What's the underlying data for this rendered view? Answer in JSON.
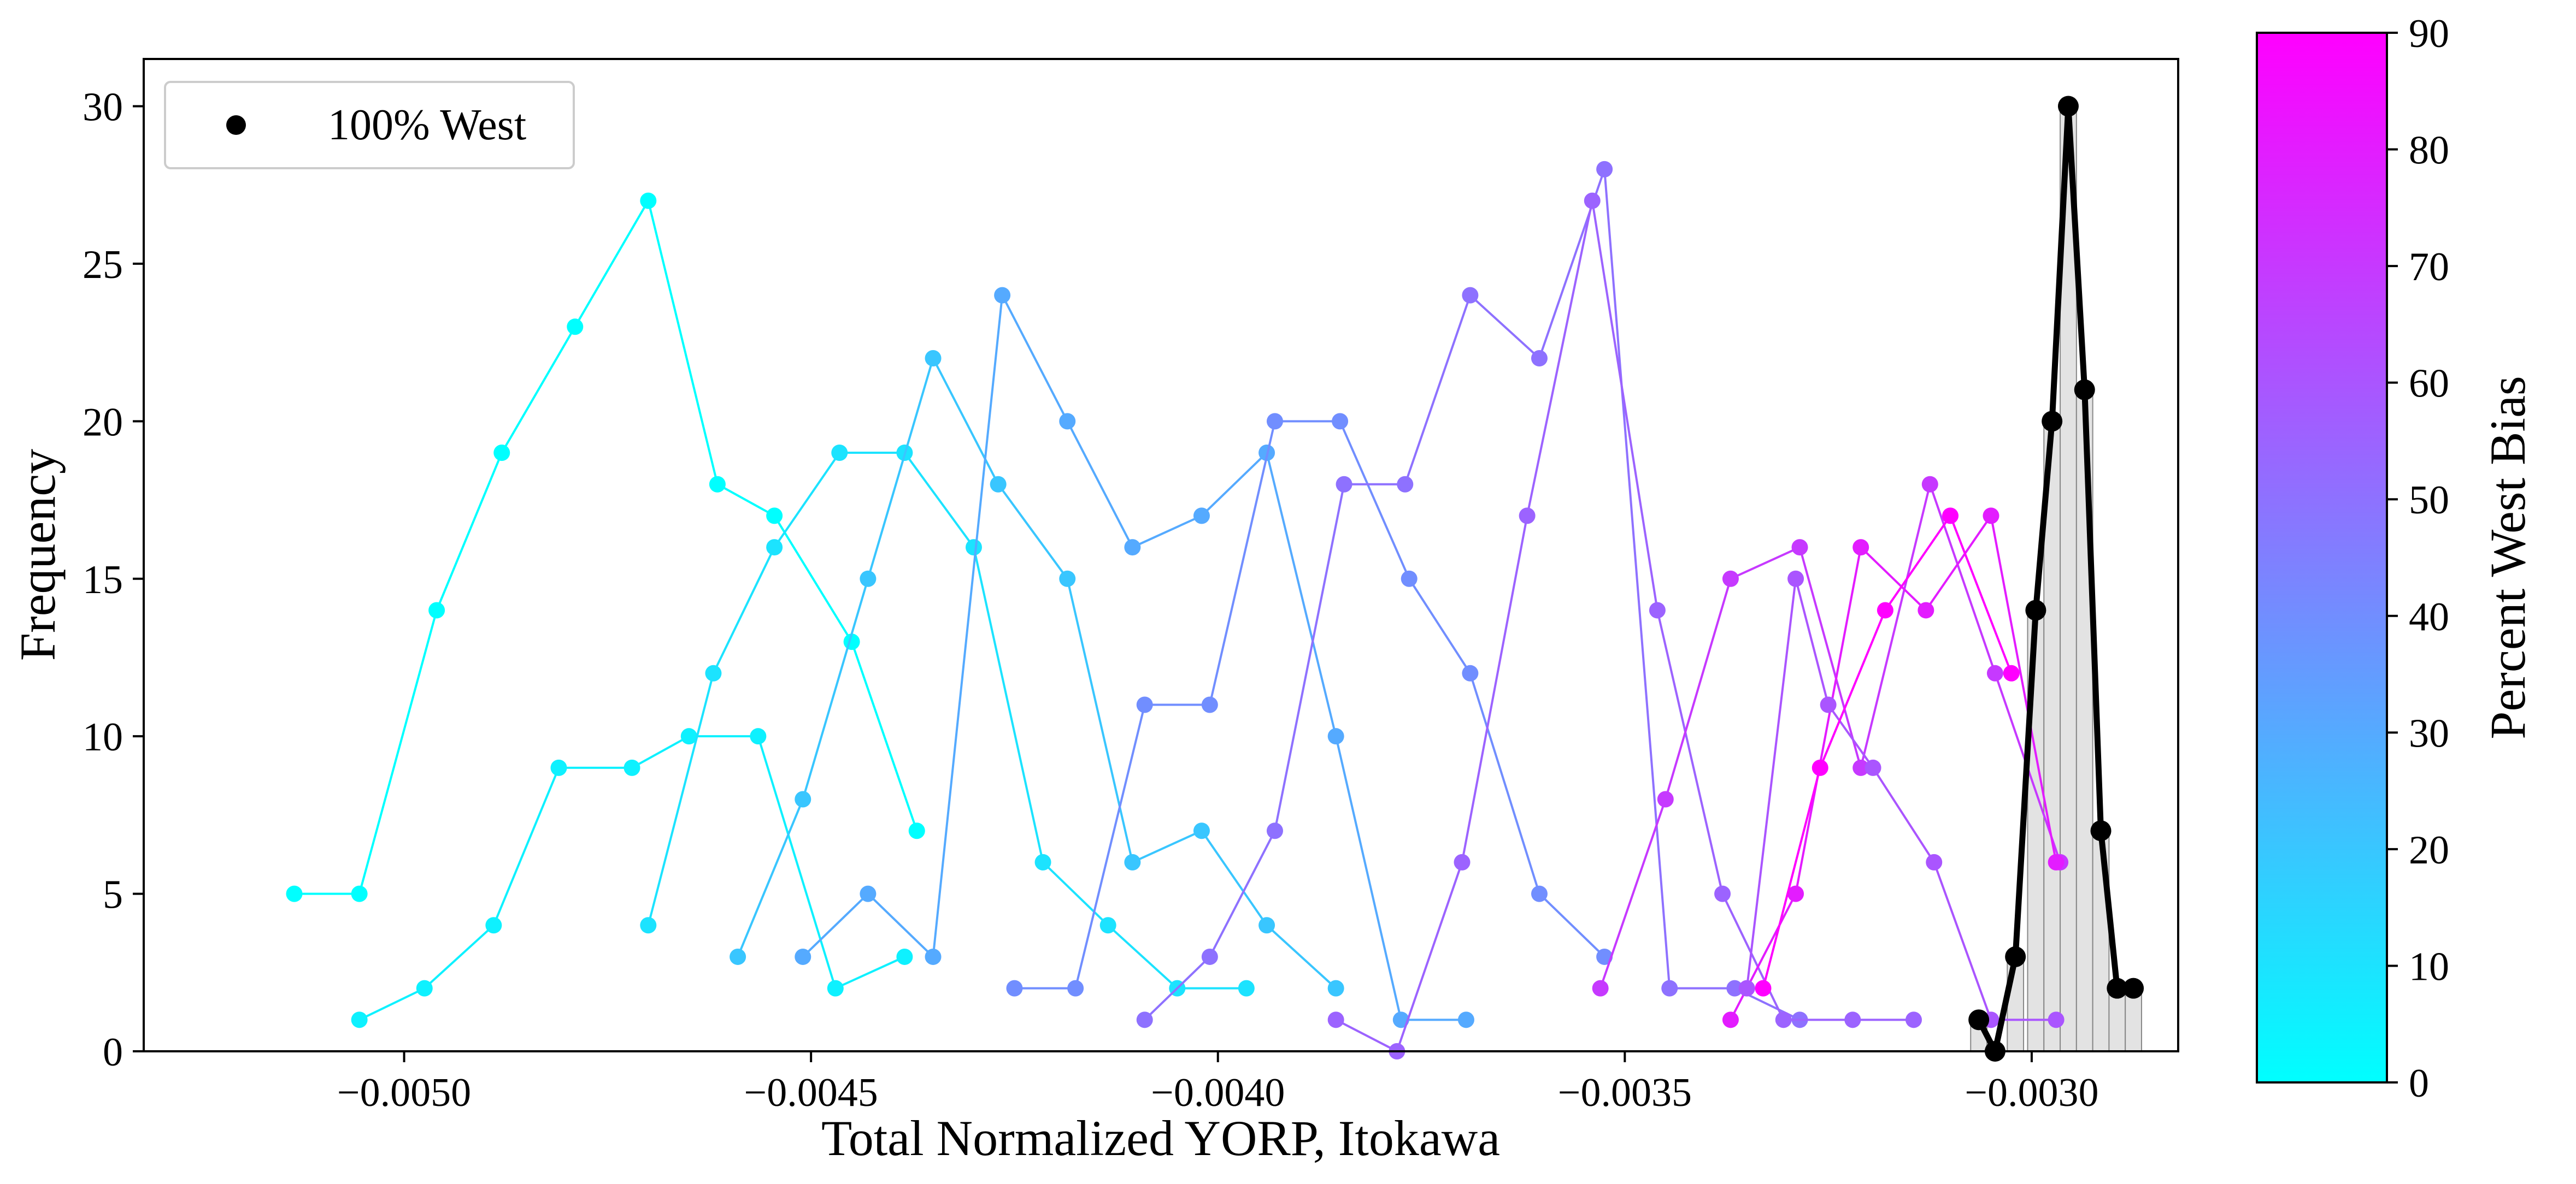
{
  "chart_data": {
    "type": "line",
    "xlabel": "Total Normalized YORP, Itokawa",
    "ylabel": "Frequency",
    "xlim": [
      -0.00532,
      -0.00282
    ],
    "ylim": [
      0,
      31.5
    ],
    "xticks": [
      -0.005,
      -0.0045,
      -0.004,
      -0.0035,
      -0.003
    ],
    "xtick_labels": [
      "−0.0050",
      "−0.0045",
      "−0.0040",
      "−0.0035",
      "−0.0030"
    ],
    "yticks": [
      0,
      5,
      10,
      15,
      20,
      25,
      30
    ],
    "ytick_labels": [
      "0",
      "5",
      "10",
      "15",
      "20",
      "25",
      "30"
    ],
    "grid": false,
    "legend": {
      "placement": "top-left",
      "entries": [
        "100% West"
      ]
    },
    "colorbar": {
      "label": "Percent West Bias",
      "range": [
        0,
        90
      ],
      "ticks": [
        "0",
        "10",
        "20",
        "30",
        "40",
        "50",
        "60",
        "70",
        "80",
        "90"
      ],
      "color_low": "#00ffff",
      "color_high": "#ff00ff"
    },
    "series": [
      {
        "bias": 0,
        "x": [
          -0.005135,
          -0.005055,
          -0.00496,
          -0.00488,
          -0.00479,
          -0.0047,
          -0.004615,
          -0.004545,
          -0.00445,
          -0.00437
        ],
        "y": [
          5,
          5,
          14,
          19,
          23,
          27,
          18,
          17,
          13,
          7
        ]
      },
      {
        "bias": 5,
        "x": [
          -0.005055,
          -0.004975,
          -0.00489,
          -0.00481,
          -0.00472,
          -0.00465,
          -0.004565,
          -0.00447,
          -0.004385
        ],
        "y": [
          1,
          2,
          4,
          9,
          9,
          10,
          10,
          2,
          3
        ]
      },
      {
        "bias": 10,
        "x": [
          -0.0047,
          -0.00462,
          -0.004545,
          -0.004465,
          -0.004385,
          -0.0043,
          -0.004215,
          -0.004135,
          -0.00405,
          -0.003965
        ],
        "y": [
          4,
          12,
          16,
          19,
          19,
          16,
          6,
          4,
          2,
          2
        ]
      },
      {
        "bias": 20,
        "x": [
          -0.00459,
          -0.00451,
          -0.00443,
          -0.00435,
          -0.00427,
          -0.004185,
          -0.004105,
          -0.00402,
          -0.00394,
          -0.003855
        ],
        "y": [
          3,
          8,
          15,
          22,
          18,
          15,
          6,
          7,
          4,
          2
        ]
      },
      {
        "bias": 30,
        "x": [
          -0.00451,
          -0.00443,
          -0.00435,
          -0.004265,
          -0.004185,
          -0.004105,
          -0.00402,
          -0.00394,
          -0.003855,
          -0.003775,
          -0.003695
        ],
        "y": [
          3,
          5,
          3,
          24,
          20,
          16,
          17,
          19,
          10,
          1,
          1
        ]
      },
      {
        "bias": 40,
        "x": [
          -0.00425,
          -0.004175,
          -0.00409,
          -0.00401,
          -0.00393,
          -0.00385,
          -0.003765,
          -0.00369,
          -0.003605,
          -0.003525
        ],
        "y": [
          2,
          2,
          11,
          11,
          20,
          20,
          15,
          12,
          5,
          3
        ]
      },
      {
        "bias": 50,
        "x": [
          -0.00409,
          -0.00401,
          -0.00393,
          -0.003845,
          -0.00377,
          -0.00369,
          -0.003605,
          -0.003525,
          -0.003445,
          -0.003365,
          -0.003285
        ],
        "y": [
          1,
          3,
          7,
          18,
          18,
          24,
          22,
          28,
          2,
          2,
          1
        ]
      },
      {
        "bias": 55,
        "x": [
          -0.003855,
          -0.00378,
          -0.0037,
          -0.00362,
          -0.00354,
          -0.00346,
          -0.00338,
          -0.003305,
          -0.00322,
          -0.003145
        ],
        "y": [
          1,
          0,
          6,
          17,
          27,
          14,
          5,
          1,
          1,
          1
        ]
      },
      {
        "bias": 70,
        "x": [
          -0.00353,
          -0.00345,
          -0.00337,
          -0.003285,
          -0.00321,
          -0.003125,
          -0.003045,
          -0.002965
        ],
        "y": [
          2,
          8,
          15,
          16,
          9,
          18,
          12,
          6
        ]
      },
      {
        "bias": 80,
        "x": [
          -0.00337,
          -0.00329,
          -0.00321,
          -0.00313,
          -0.00305,
          -0.00297
        ],
        "y": [
          1,
          5,
          16,
          14,
          17,
          6
        ]
      },
      {
        "bias": 60,
        "x": [
          -0.00335,
          -0.00329,
          -0.00325,
          -0.003195,
          -0.00312,
          -0.00305,
          -0.00297
        ],
        "y": [
          2,
          15,
          11,
          9,
          6,
          1,
          1
        ]
      },
      {
        "bias": 90,
        "x": [
          -0.00333,
          -0.00326,
          -0.00318,
          -0.0031,
          -0.003025
        ],
        "y": [
          2,
          9,
          14,
          17,
          12
        ]
      }
    ],
    "reference_series": {
      "name": "100% West",
      "color": "#000000",
      "x": [
        -0.003065,
        -0.003045,
        -0.00302,
        -0.002995,
        -0.002975,
        -0.002955,
        -0.002935,
        -0.002915,
        -0.002895,
        -0.002875
      ],
      "y": [
        1,
        0,
        3,
        14,
        20,
        30,
        21,
        7,
        2,
        2
      ]
    }
  }
}
